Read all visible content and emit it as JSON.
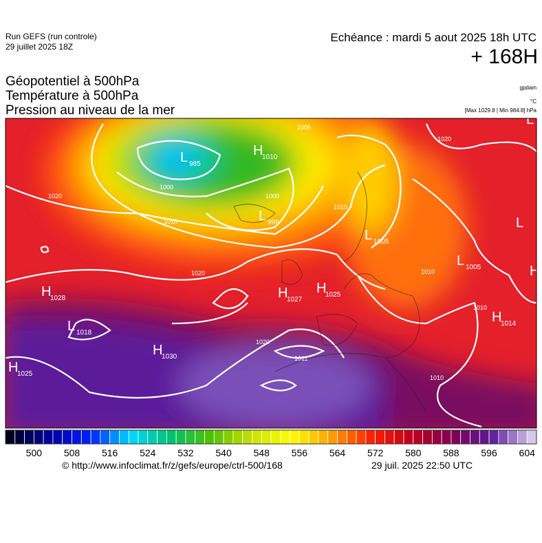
{
  "header": {
    "run": "Run GEFS (run controle)",
    "date": "29 juillet 2025 18Z",
    "forecast": "Echéance : mardi 5 aout 2025 18h UTC",
    "lead": "+ 168H",
    "titles": [
      "Géopotentiel à 500hPa",
      "Température à 500hPa",
      "Pression au niveau de la mer"
    ],
    "units": [
      "gpdam",
      "°C",
      "[Max 1029.8 | Min 984.8] hPa"
    ]
  },
  "map": {
    "centers": [
      {
        "symbol": "L",
        "value": "985"
      },
      {
        "symbol": "H",
        "value": "1010"
      },
      {
        "symbol": "L",
        "value": "996"
      },
      {
        "symbol": "H",
        "value": "1028"
      },
      {
        "symbol": "L",
        "value": "1018"
      },
      {
        "symbol": "H",
        "value": "1030"
      },
      {
        "symbol": "H",
        "value": "1025"
      },
      {
        "symbol": "H",
        "value": "1027"
      },
      {
        "symbol": "H",
        "value": "1025"
      },
      {
        "symbol": "L",
        "value": "1005"
      },
      {
        "symbol": "L",
        "value": "1005"
      },
      {
        "symbol": "H",
        "value": "1014"
      },
      {
        "symbol": "L"
      },
      {
        "symbol": "L"
      },
      {
        "symbol": "H"
      }
    ],
    "isobar_labels": [
      "1020",
      "1010",
      "1000",
      "1000",
      "1020",
      "1020",
      "1011",
      "1010",
      "1010",
      "1005",
      "1010",
      "1010",
      "1020"
    ]
  },
  "colorbar": {
    "range": [
      494,
      606
    ],
    "step": 2,
    "ticks": [
      500,
      508,
      516,
      524,
      532,
      540,
      548,
      556,
      564,
      572,
      580,
      588,
      596,
      604
    ],
    "colors": [
      "#000020",
      "#0000a0",
      "#0020ff",
      "#00d8ff",
      "#00c070",
      "#50c000",
      "#c8e000",
      "#ffff00",
      "#ffa000",
      "#ff2000",
      "#c00020",
      "#800050",
      "#5a1a9a",
      "#d8c8ec"
    ]
  },
  "footer": {
    "source": "© http://www.infoclimat.fr/z/gefs/europe/ctrl-500/168",
    "generated": "29 juil. 2025 22:50 UTC"
  }
}
